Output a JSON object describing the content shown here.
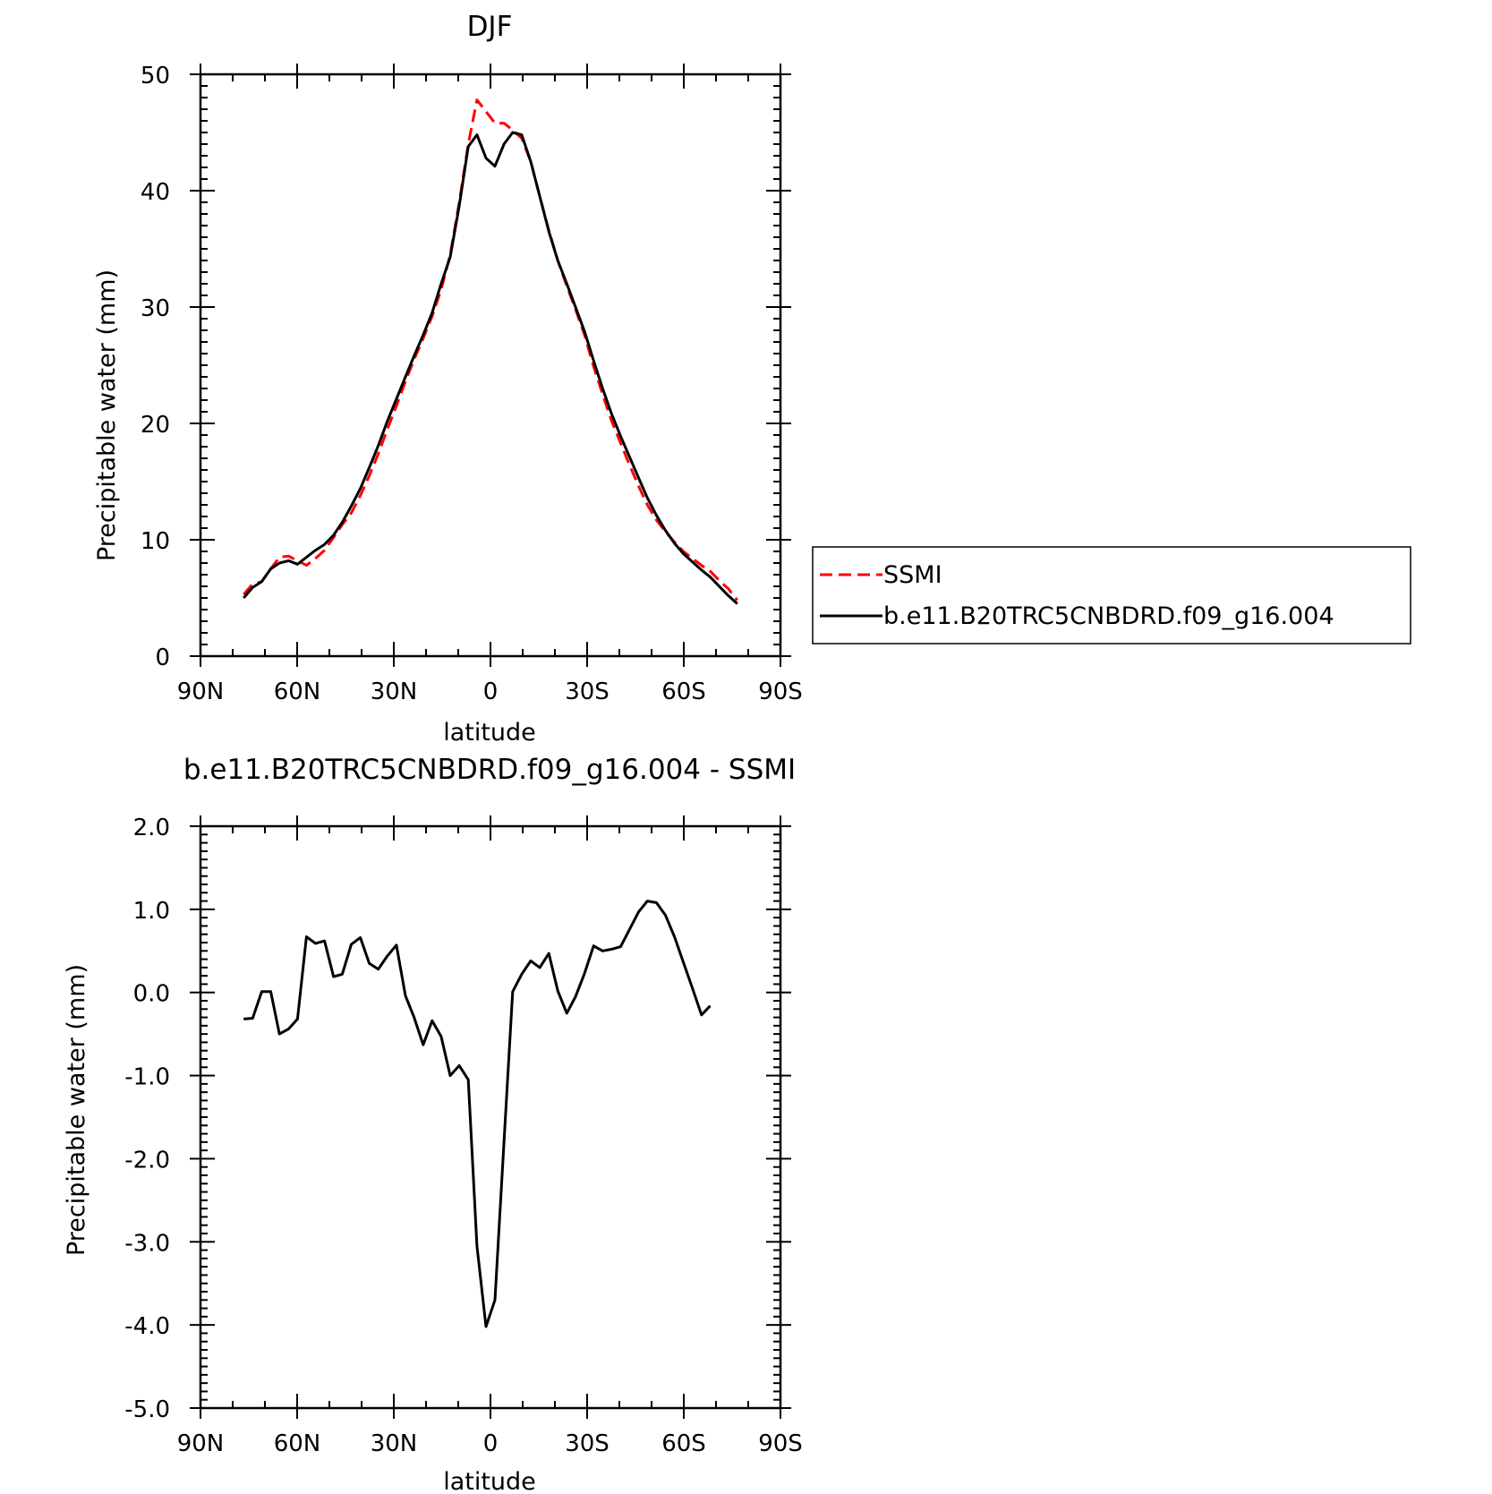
{
  "colors": {
    "ssmi": "#ff0000",
    "model": "#000000",
    "axis": "#000000",
    "background": "#ffffff"
  },
  "chart_data": [
    {
      "type": "line",
      "title": "DJF",
      "xlabel": "latitude",
      "ylabel": "Precipitable water (mm)",
      "xlim": [
        90,
        -90
      ],
      "ylim": [
        0,
        50
      ],
      "x_ticks": [
        90,
        60,
        30,
        0,
        -30,
        -60,
        -90
      ],
      "x_tick_labels": [
        "90N",
        "60N",
        "30N",
        "0",
        "30S",
        "60S",
        "90S"
      ],
      "y_ticks": [
        0,
        10,
        20,
        30,
        40,
        50
      ],
      "y_tick_labels": [
        "0",
        "10",
        "20",
        "30",
        "40",
        "50"
      ],
      "grid": false,
      "legend_position": "right",
      "series": [
        {
          "name": "SSMI",
          "style": "dashed",
          "color": "#ff0000",
          "x": [
            76.6,
            73.8,
            71,
            68.2,
            65.5,
            62.7,
            59.9,
            57.1,
            54.3,
            51.5,
            48.7,
            46,
            43.2,
            40.4,
            37.6,
            34.8,
            32,
            29.2,
            26.4,
            23.7,
            20.9,
            18.1,
            15.3,
            12.5,
            9.7,
            6.9,
            4.2,
            1.4,
            -1.4,
            -4.2,
            -6.9,
            -9.7,
            -12.5,
            -15.3,
            -18.1,
            -20.9,
            -23.7,
            -26.4,
            -29.2,
            -32,
            -34.8,
            -37.6,
            -40.4,
            -43.2,
            -46,
            -48.7,
            -51.5,
            -54.3,
            -57.1,
            -59.9,
            -62.7,
            -65.5,
            -68.2,
            -71,
            -73.8,
            -76.6
          ],
          "y": [
            5.3,
            6.2,
            6.4,
            7.5,
            8.5,
            8.6,
            8.2,
            7.8,
            8.4,
            9.1,
            10.2,
            11.3,
            12.3,
            13.8,
            15.5,
            17.4,
            19.5,
            21.5,
            23.6,
            25.5,
            27.3,
            29.2,
            31.5,
            34.5,
            39,
            44,
            47.8,
            46.8,
            45.8,
            45.8,
            45.2,
            44.5,
            42.5,
            39.5,
            36.6,
            34,
            31.8,
            29.8,
            27.6,
            24.9,
            22.5,
            20.2,
            18.3,
            16.4,
            14.6,
            13,
            11.7,
            10.7,
            9.8,
            9,
            8.4,
            7.8,
            7.3,
            6.5,
            5.8,
            4.8
          ]
        },
        {
          "name": "b.e11.B20TRC5CNBDRD.f09_g16.004",
          "style": "solid",
          "color": "#000000",
          "x": [
            76.6,
            73.8,
            71,
            68.2,
            65.5,
            62.7,
            59.9,
            57.1,
            54.3,
            51.5,
            48.7,
            46,
            43.2,
            40.4,
            37.6,
            34.8,
            32,
            29.2,
            26.4,
            23.7,
            20.9,
            18.1,
            15.3,
            12.5,
            9.7,
            6.9,
            4.2,
            1.4,
            -1.4,
            -4.2,
            -6.9,
            -9.7,
            -12.5,
            -15.3,
            -18.1,
            -20.9,
            -23.7,
            -26.4,
            -29.2,
            -32,
            -34.8,
            -37.6,
            -40.4,
            -43.2,
            -46,
            -48.7,
            -51.5,
            -54.3,
            -57.1,
            -59.9,
            -62.7,
            -65.5,
            -68.2,
            -71,
            -73.8,
            -76.6
          ],
          "y": [
            5,
            5.9,
            6.4,
            7.5,
            8,
            8.2,
            7.9,
            8.5,
            9.1,
            9.6,
            10.4,
            11.5,
            12.9,
            14.4,
            16.2,
            18.1,
            20.2,
            22.1,
            24,
            25.8,
            27.6,
            29.5,
            32,
            34.3,
            38.7,
            43.8,
            44.8,
            42.8,
            42.1,
            44,
            45,
            44.8,
            42.5,
            39.5,
            36.5,
            34,
            32,
            30,
            27.9,
            25.4,
            23,
            20.8,
            18.9,
            17.1,
            15.3,
            13.6,
            12.1,
            10.8,
            9.7,
            8.8,
            8.1,
            7.4,
            6.8,
            6,
            5.2,
            4.5
          ]
        }
      ]
    },
    {
      "type": "line",
      "title": "b.e11.B20TRC5CNBDRD.f09_g16.004 - SSMI",
      "xlabel": "latitude",
      "ylabel": "Precipitable water (mm)",
      "xlim": [
        90,
        -90
      ],
      "ylim": [
        -5,
        2
      ],
      "x_ticks": [
        90,
        60,
        30,
        0,
        -30,
        -60,
        -90
      ],
      "x_tick_labels": [
        "90N",
        "60N",
        "30N",
        "0",
        "30S",
        "60S",
        "90S"
      ],
      "y_ticks": [
        2,
        1,
        0,
        -1,
        -2,
        -3,
        -4,
        -5
      ],
      "y_tick_labels": [
        "2.0",
        "1.0",
        "0.0",
        "-1.0",
        "-2.0",
        "-3.0",
        "-4.0",
        "-5.0"
      ],
      "grid": false,
      "series": [
        {
          "style": "solid",
          "color": "#000000",
          "x": [
            76.6,
            73.8,
            71,
            68.2,
            65.5,
            62.7,
            59.9,
            57.1,
            54.3,
            51.5,
            48.7,
            46,
            43.2,
            40.4,
            37.6,
            34.8,
            32,
            29.2,
            26.4,
            23.7,
            20.9,
            18.1,
            15.3,
            12.5,
            9.7,
            6.9,
            4.2,
            1.4,
            -1.4,
            -4.2,
            -6.9,
            -9.7,
            -12.5,
            -15.3,
            -18.1,
            -20.9,
            -23.7,
            -26.4,
            -29.2,
            -32,
            -34.8,
            -37.6,
            -40.4,
            -43.2,
            -46,
            -48.7,
            -51.5,
            -54.3,
            -57.1,
            -59.9,
            -62.7,
            -65.5,
            -68.2
          ],
          "y": [
            -0.32,
            -0.31,
            0.01,
            0.01,
            -0.5,
            -0.44,
            -0.32,
            0.67,
            0.59,
            0.62,
            0.19,
            0.22,
            0.58,
            0.66,
            0.35,
            0.28,
            0.44,
            0.57,
            -0.04,
            -0.3,
            -0.63,
            -0.34,
            -0.53,
            -1.0,
            -0.88,
            -1.05,
            -3.05,
            -4.02,
            -3.7,
            -1.8,
            0.01,
            0.22,
            0.38,
            0.3,
            0.47,
            0.02,
            -0.25,
            -0.05,
            0.23,
            0.56,
            0.5,
            0.52,
            0.55,
            0.76,
            0.97,
            1.1,
            1.08,
            0.93,
            0.67,
            0.36,
            0.05,
            -0.27,
            -0.16
          ]
        }
      ]
    }
  ]
}
